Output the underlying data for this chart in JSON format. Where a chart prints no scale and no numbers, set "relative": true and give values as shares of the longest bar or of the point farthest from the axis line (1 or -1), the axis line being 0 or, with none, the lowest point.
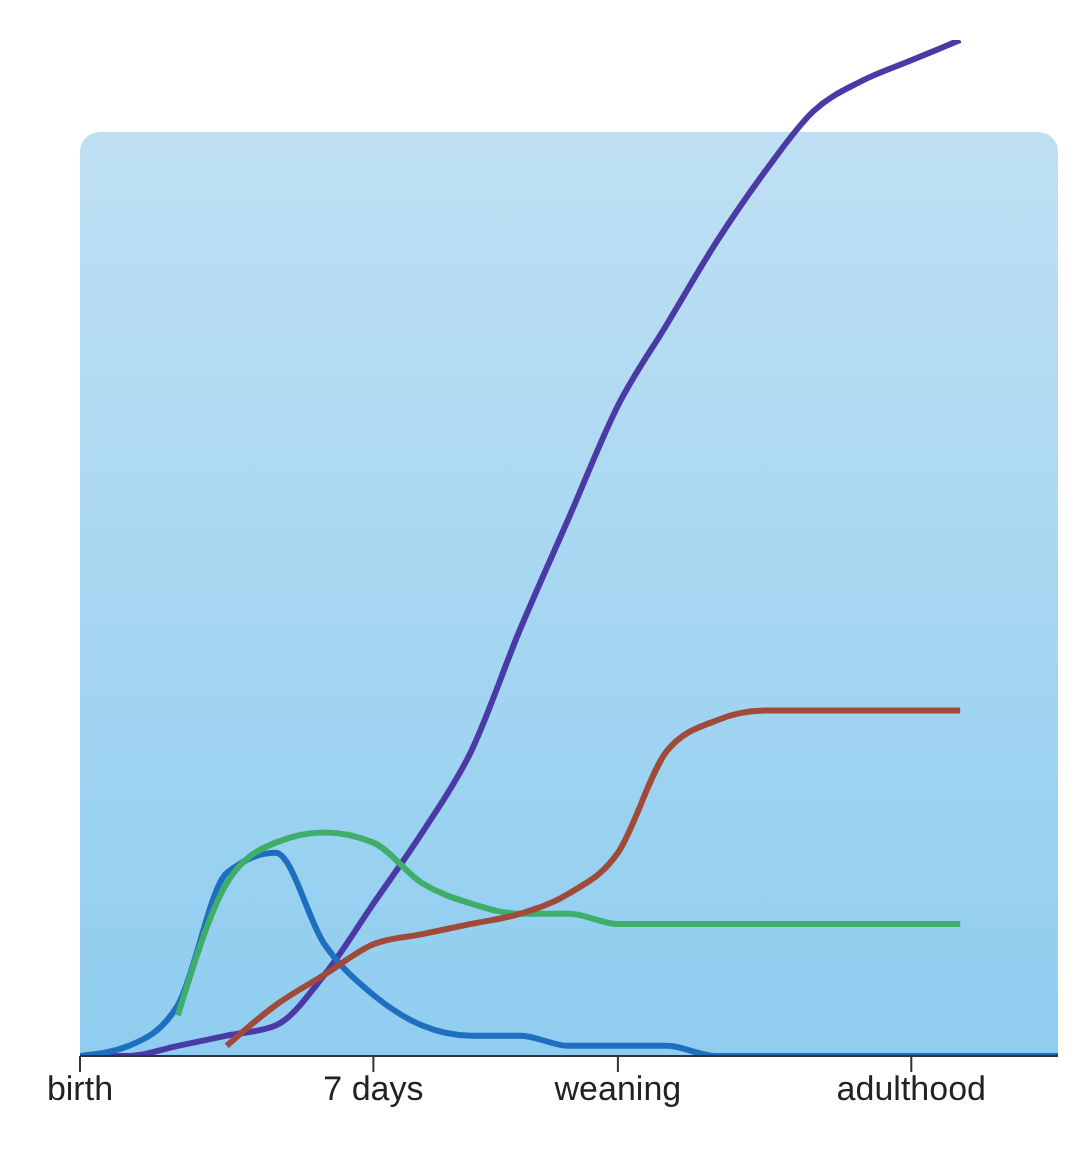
{
  "chart_data": {
    "type": "line",
    "relative": true,
    "grid": false,
    "legend": false,
    "marker": "none",
    "line_style": "solid",
    "categories": [
      "birth",
      null,
      null,
      null,
      null,
      null,
      "7 days",
      null,
      null,
      null,
      null,
      "weaning",
      null,
      null,
      null,
      null,
      null,
      "adulthood",
      null,
      null,
      null
    ],
    "series": [
      {
        "color": "#4b3aa6",
        "values": [
          0,
          0,
          0.01,
          0.02,
          0.03,
          0.08,
          0.15,
          0.22,
          0.3,
          0.42,
          0.53,
          0.64,
          0.72,
          0.8,
          0.87,
          0.93,
          0.96,
          0.98,
          1,
          null,
          null
        ]
      },
      {
        "color": "#1f6fc0",
        "values": [
          0,
          0.01,
          0.05,
          0.18,
          0.2,
          0.11,
          0.06,
          0.03,
          0.02,
          0.02,
          0.01,
          0.01,
          0.01,
          0,
          0,
          0,
          0,
          0,
          0,
          0,
          0
        ]
      },
      {
        "color": "#3fae6a",
        "values": [
          null,
          null,
          0.04,
          0.17,
          0.21,
          0.22,
          0.21,
          0.17,
          0.15,
          0.14,
          0.14,
          0.13,
          0.13,
          0.13,
          0.13,
          0.13,
          0.13,
          0.13,
          0.13,
          null,
          null
        ]
      },
      {
        "color": "#a04a3a",
        "values": [
          null,
          null,
          null,
          0.01,
          0.05,
          0.08,
          0.11,
          0.12,
          0.13,
          0.14,
          0.16,
          0.2,
          0.3,
          0.33,
          0.34,
          0.34,
          0.34,
          0.34,
          0.34,
          null,
          null
        ]
      }
    ]
  }
}
